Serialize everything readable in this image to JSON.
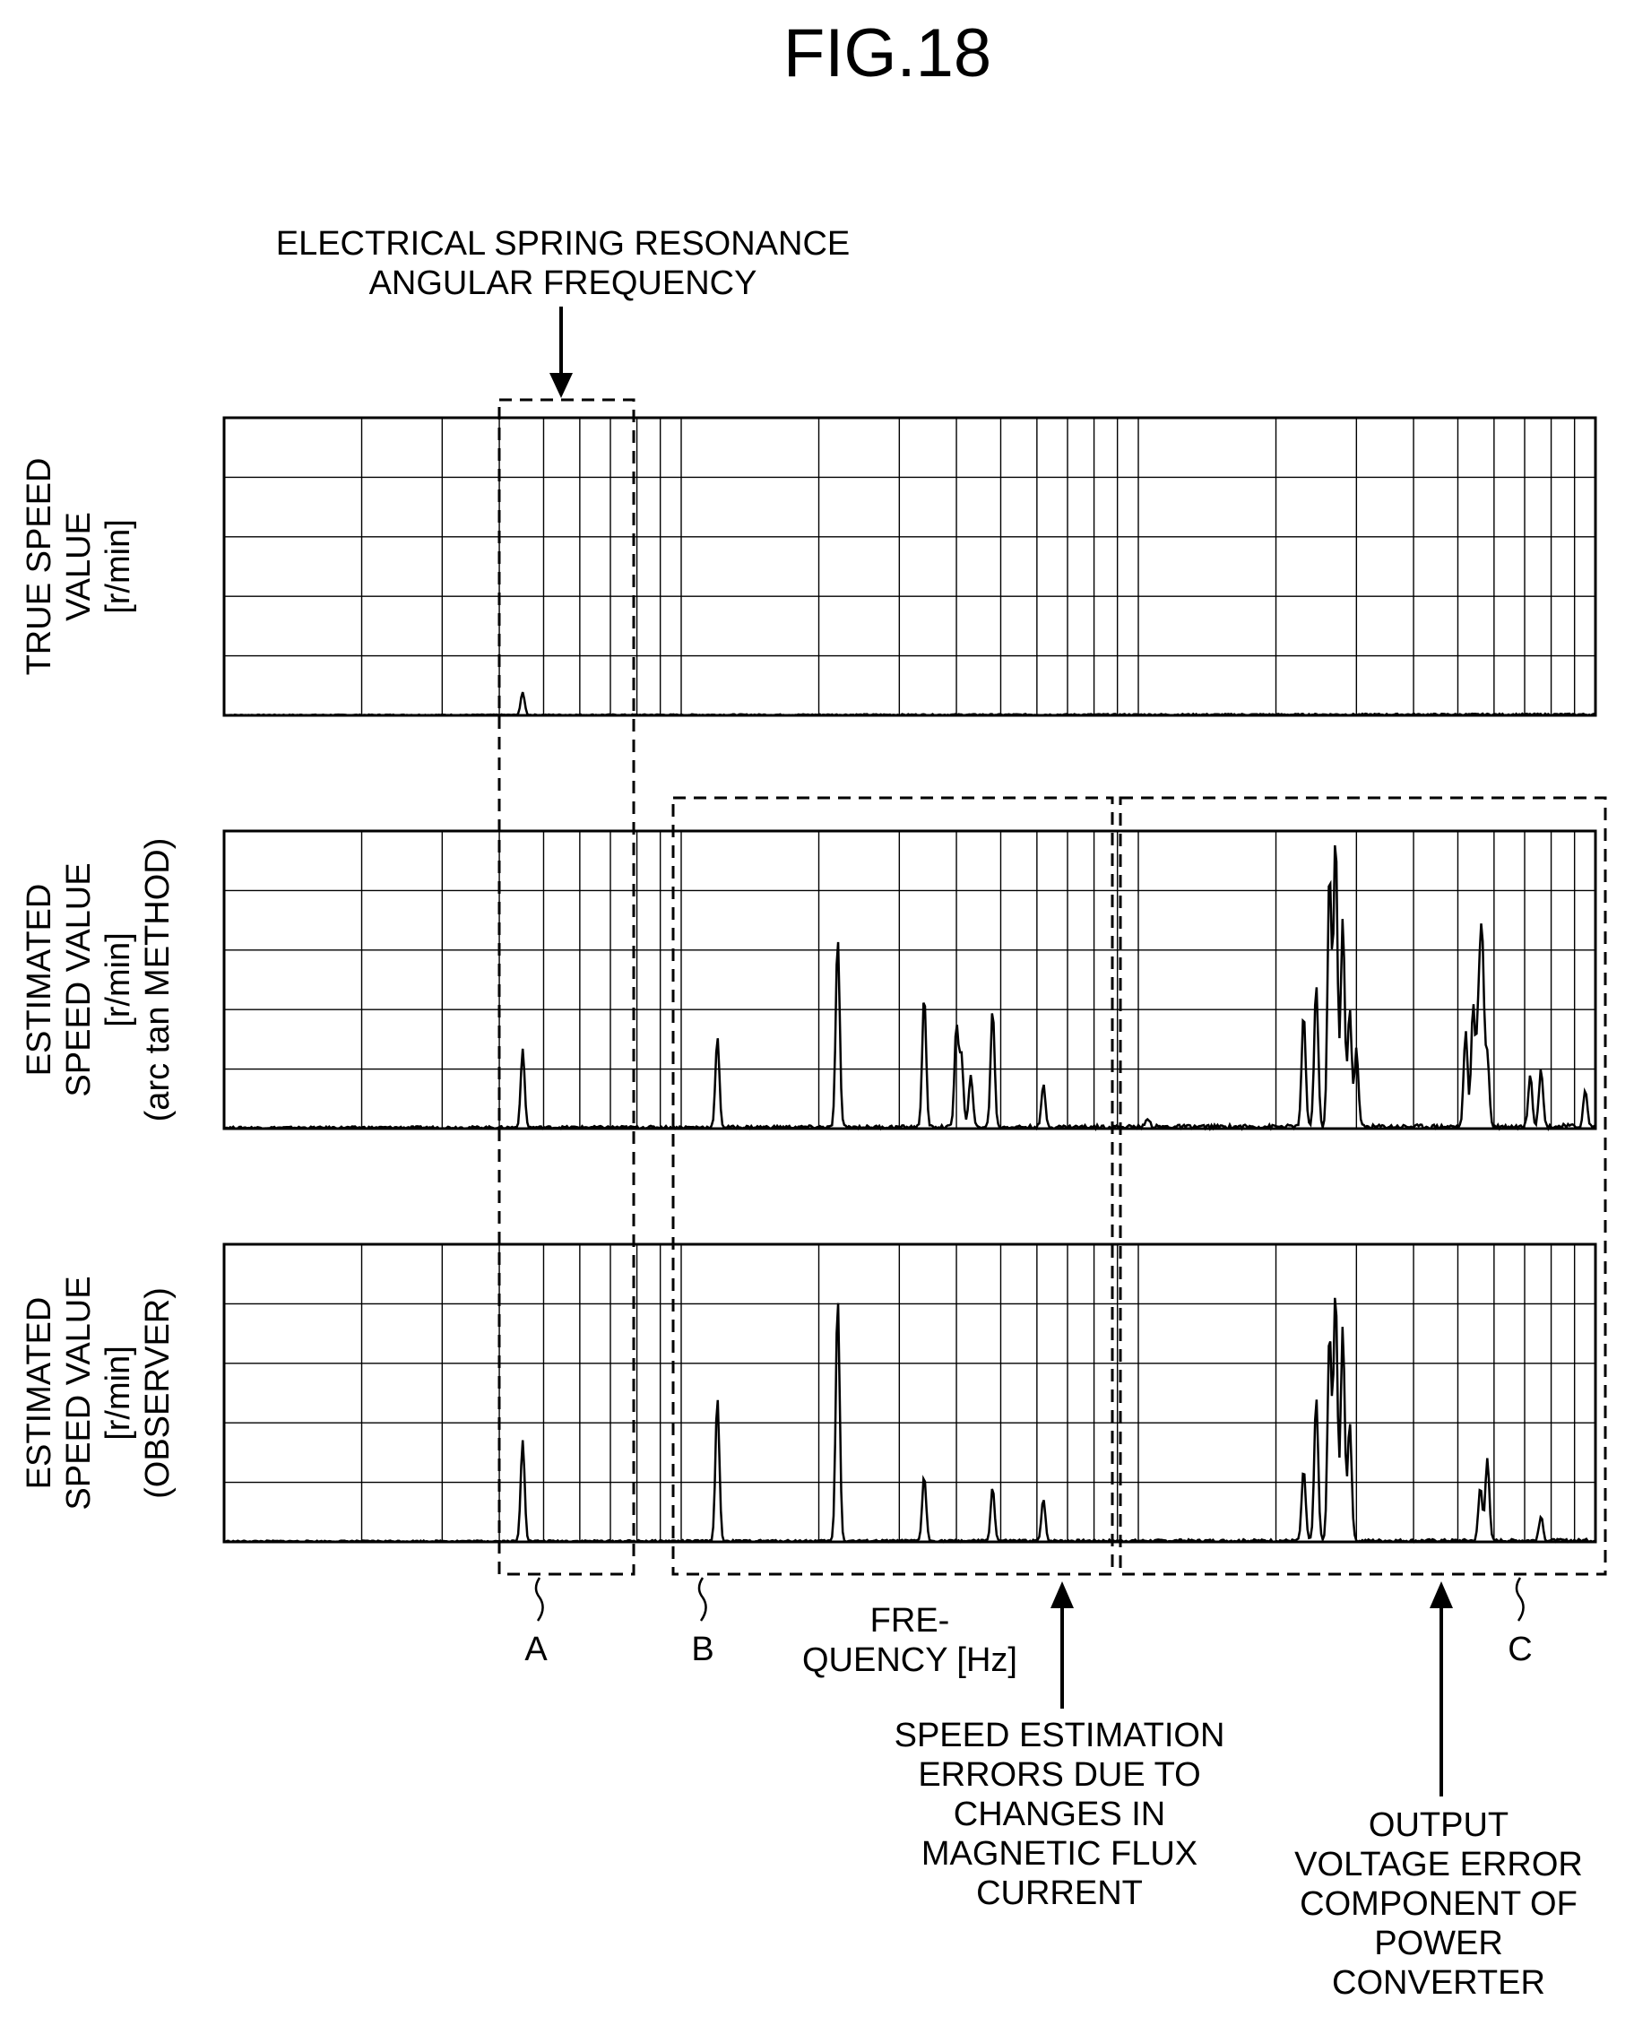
{
  "figure": {
    "title": "FIG.18",
    "x_axis_label": [
      "FRE-",
      "QUENCY [Hz]"
    ]
  },
  "chart_data": [
    {
      "type": "line",
      "panel": "true-speed",
      "ylabel": [
        "TRUE SPEED",
        "VALUE",
        "[r/min]"
      ],
      "xscale": "log",
      "xlim": [
        1,
        1000
      ],
      "ylim": [
        0,
        5
      ],
      "grid": true,
      "series": [
        {
          "peaks": [
            {
              "x": 4.5,
              "y": 0.38
            }
          ],
          "noise": 0.03
        }
      ]
    },
    {
      "type": "line",
      "panel": "arctan-estimate",
      "ylabel": [
        "ESTIMATED",
        "SPEED VALUE",
        "[r/min]",
        "(arc tan METHOD)"
      ],
      "xscale": "log",
      "xlim": [
        1,
        1000
      ],
      "ylim": [
        0,
        5
      ],
      "grid": true,
      "series": [
        {
          "peaks": [
            {
              "x": 4.5,
              "y": 1.3
            },
            {
              "x": 12,
              "y": 1.5
            },
            {
              "x": 22,
              "y": 3.2
            },
            {
              "x": 34,
              "y": 2.2
            },
            {
              "x": 40,
              "y": 1.7
            },
            {
              "x": 41,
              "y": 1.2
            },
            {
              "x": 43,
              "y": 0.9
            },
            {
              "x": 48,
              "y": 2.0
            },
            {
              "x": 62,
              "y": 0.7
            },
            {
              "x": 105,
              "y": 0.15
            },
            {
              "x": 230,
              "y": 1.9
            },
            {
              "x": 245,
              "y": 2.4
            },
            {
              "x": 262,
              "y": 4.3
            },
            {
              "x": 270,
              "y": 4.9
            },
            {
              "x": 280,
              "y": 3.5
            },
            {
              "x": 290,
              "y": 2.0
            },
            {
              "x": 300,
              "y": 1.3
            },
            {
              "x": 520,
              "y": 1.6
            },
            {
              "x": 540,
              "y": 2.0
            },
            {
              "x": 555,
              "y": 1.8
            },
            {
              "x": 565,
              "y": 3.0
            },
            {
              "x": 580,
              "y": 1.2
            },
            {
              "x": 720,
              "y": 0.9
            },
            {
              "x": 760,
              "y": 1.0
            },
            {
              "x": 950,
              "y": 0.6
            }
          ],
          "noise": 0.08
        }
      ]
    },
    {
      "type": "line",
      "panel": "observer-estimate",
      "ylabel": [
        "ESTIMATED",
        "SPEED VALUE",
        "[r/min]",
        "(OBSERVER)"
      ],
      "xscale": "log",
      "xlim": [
        1,
        1000
      ],
      "ylim": [
        0,
        5
      ],
      "grid": true,
      "series": [
        {
          "peaks": [
            {
              "x": 4.5,
              "y": 1.7
            },
            {
              "x": 12,
              "y": 2.4
            },
            {
              "x": 22,
              "y": 4.1
            },
            {
              "x": 34,
              "y": 1.1
            },
            {
              "x": 48,
              "y": 0.9
            },
            {
              "x": 62,
              "y": 0.7
            },
            {
              "x": 230,
              "y": 1.2
            },
            {
              "x": 245,
              "y": 2.4
            },
            {
              "x": 262,
              "y": 3.5
            },
            {
              "x": 270,
              "y": 4.2
            },
            {
              "x": 280,
              "y": 3.6
            },
            {
              "x": 290,
              "y": 2.0
            },
            {
              "x": 560,
              "y": 0.9
            },
            {
              "x": 580,
              "y": 1.4
            },
            {
              "x": 760,
              "y": 0.4
            }
          ],
          "noise": 0.05
        }
      ]
    }
  ],
  "annotations": {
    "top_label": [
      "ELECTRICAL SPRING RESONANCE",
      "ANGULAR FREQUENCY"
    ],
    "region_a": "A",
    "region_b": "B",
    "region_c": "C",
    "flux_label": [
      "SPEED ESTIMATION",
      "ERRORS DUE TO",
      "CHANGES IN",
      "MAGNETIC FLUX",
      "CURRENT"
    ],
    "voltage_label": [
      "OUTPUT",
      "VOLTAGE ERROR",
      "COMPONENT OF",
      "POWER",
      "CONVERTER"
    ]
  }
}
